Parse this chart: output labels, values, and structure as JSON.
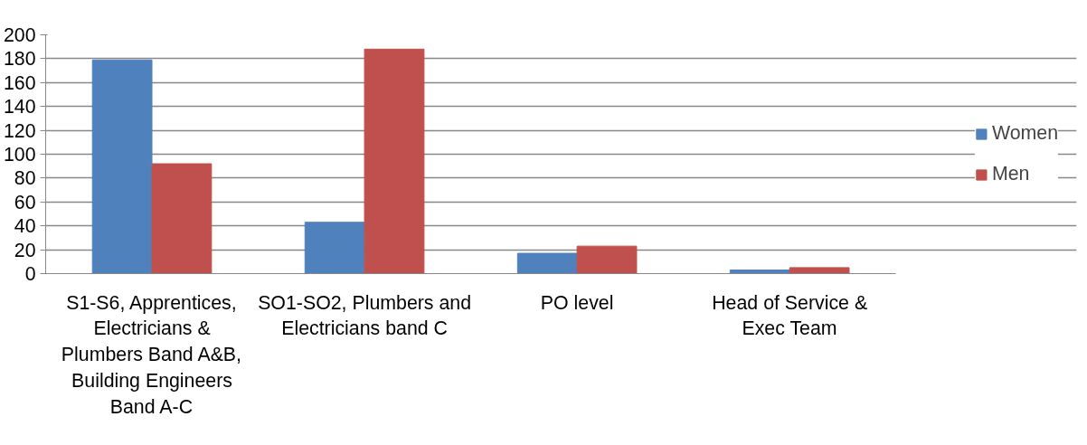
{
  "chart_data": {
    "type": "bar",
    "categories": [
      "S1-S6, Apprentices, Electricians & Plumbers Band A&B, Building Engineers Band A-C",
      "SO1-SO2, Plumbers and Electricians band C",
      "PO level",
      "Head of Service & Exec Team"
    ],
    "series": [
      {
        "name": "Women",
        "color": "#4f81bd",
        "values": [
          179,
          43,
          17,
          3
        ]
      },
      {
        "name": "Men",
        "color": "#c0504d",
        "values": [
          92,
          188,
          23,
          5
        ]
      }
    ],
    "ylim": [
      0,
      200
    ],
    "yticks": [
      0,
      20,
      40,
      60,
      80,
      100,
      120,
      140,
      160,
      180,
      200
    ],
    "grid": "y",
    "legend": "right"
  }
}
